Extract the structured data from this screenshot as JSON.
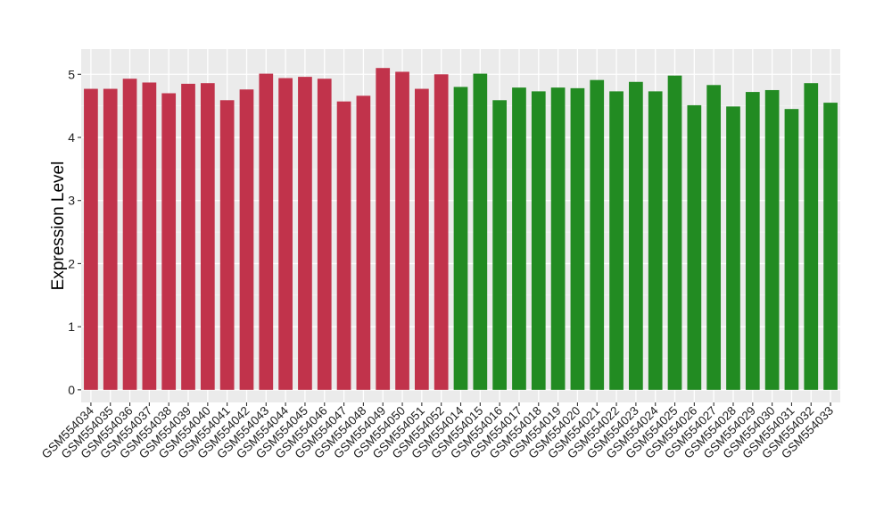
{
  "chart_data": {
    "type": "bar",
    "title": "",
    "xlabel": "",
    "ylabel": "Expression Level",
    "ylim": [
      -0.2,
      5.4
    ],
    "yticks": [
      0,
      1,
      2,
      3,
      4,
      5
    ],
    "grid": true,
    "legend": "none",
    "categories": [
      "GSM554034",
      "GSM554035",
      "GSM554036",
      "GSM554037",
      "GSM554038",
      "GSM554039",
      "GSM554040",
      "GSM554041",
      "GSM554042",
      "GSM554043",
      "GSM554044",
      "GSM554045",
      "GSM554046",
      "GSM554047",
      "GSM554048",
      "GSM554049",
      "GSM554050",
      "GSM554051",
      "GSM554052",
      "GSM554014",
      "GSM554015",
      "GSM554016",
      "GSM554017",
      "GSM554018",
      "GSM554019",
      "GSM554020",
      "GSM554021",
      "GSM554022",
      "GSM554023",
      "GSM554024",
      "GSM554025",
      "GSM554026",
      "GSM554027",
      "GSM554028",
      "GSM554029",
      "GSM554030",
      "GSM554031",
      "GSM554032",
      "GSM554033"
    ],
    "values": [
      4.77,
      4.77,
      4.93,
      4.87,
      4.7,
      4.85,
      4.86,
      4.59,
      4.76,
      5.01,
      4.94,
      4.96,
      4.93,
      4.57,
      4.66,
      5.1,
      5.04,
      4.77,
      5.0,
      4.8,
      5.01,
      4.59,
      4.79,
      4.73,
      4.79,
      4.78,
      4.91,
      4.73,
      4.88,
      4.73,
      4.98,
      4.51,
      4.83,
      4.49,
      4.72,
      4.75,
      4.45,
      4.86,
      4.55
    ],
    "bar_colors": [
      "#c1334b",
      "#c1334b",
      "#c1334b",
      "#c1334b",
      "#c1334b",
      "#c1334b",
      "#c1334b",
      "#c1334b",
      "#c1334b",
      "#c1334b",
      "#c1334b",
      "#c1334b",
      "#c1334b",
      "#c1334b",
      "#c1334b",
      "#c1334b",
      "#c1334b",
      "#c1334b",
      "#c1334b",
      "#228b22",
      "#228b22",
      "#228b22",
      "#228b22",
      "#228b22",
      "#228b22",
      "#228b22",
      "#228b22",
      "#228b22",
      "#228b22",
      "#228b22",
      "#228b22",
      "#228b22",
      "#228b22",
      "#228b22",
      "#228b22",
      "#228b22",
      "#228b22",
      "#228b22",
      "#228b22"
    ],
    "colors": {
      "panel": "#ebebeb",
      "grid_major": "#ffffff",
      "grid_minor": "#f5f5f5",
      "group_1": "#c1334b",
      "group_2": "#228b22"
    }
  }
}
